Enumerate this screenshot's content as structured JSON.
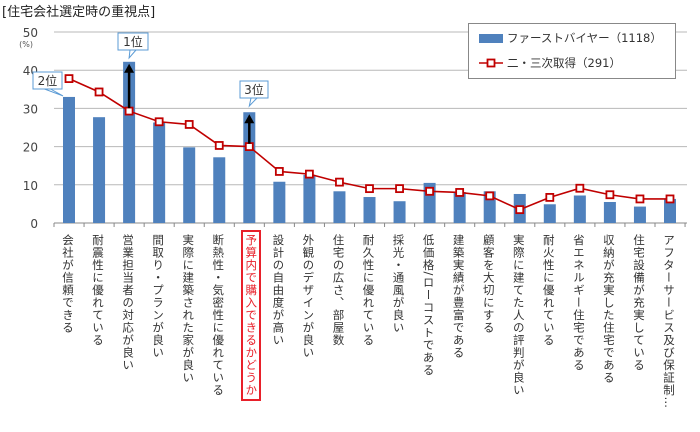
{
  "title": "[住宅会社選定時の重視点]",
  "chart_data": {
    "type": "bar+line",
    "ylabel": "(%)",
    "ylim": [
      0,
      50
    ],
    "yticks": [
      0,
      10,
      20,
      30,
      40,
      50
    ],
    "grid": true,
    "legend_position": "top-right",
    "categories": [
      "会社が信頼できる",
      "耐震性に優れている",
      "営業担当者の対応が良い",
      "間取り・プランが良い",
      "実際に建築された家が良い",
      "断熱性・気密性に優れている",
      "予算内で購入できるかどうか",
      "設計の自由度が高い",
      "外観のデザインが良い",
      "住宅の広さ、部屋数",
      "耐久性に優れている",
      "採光・通風が良い",
      "低価格/ローコストである",
      "建築実績が豊富である",
      "顧客を大切にする",
      "実際に建てた人の評判が良い",
      "耐火性に優れている",
      "省エネルギー住宅である",
      "収納が充実した住宅である",
      "住宅設備が充実している",
      "アフターサービス及び保証制…"
    ],
    "highlighted_category": "予算内で購入できるかどうか",
    "series": [
      {
        "name": "ファーストバイヤー（1118）",
        "type": "bar",
        "color": "#4f81bd",
        "values": [
          33.0,
          27.7,
          42.2,
          26.3,
          19.8,
          17.2,
          29.0,
          10.8,
          12.6,
          8.3,
          6.8,
          5.7,
          10.5,
          8.1,
          8.3,
          7.6,
          4.9,
          7.2,
          5.5,
          4.3,
          6.3
        ]
      },
      {
        "name": "二・三次取得（291）",
        "type": "line",
        "color": "#c00000",
        "values": [
          37.8,
          34.3,
          29.3,
          26.5,
          25.8,
          20.3,
          20.0,
          13.5,
          12.8,
          10.7,
          9.0,
          9.0,
          8.3,
          8.0,
          7.1,
          3.5,
          6.7,
          9.1,
          7.4,
          6.3,
          6.3
        ]
      }
    ],
    "annotations": [
      {
        "text": "1位",
        "category_index": 2
      },
      {
        "text": "2位",
        "category_index": 0
      },
      {
        "text": "3位",
        "category_index": 6
      }
    ]
  }
}
